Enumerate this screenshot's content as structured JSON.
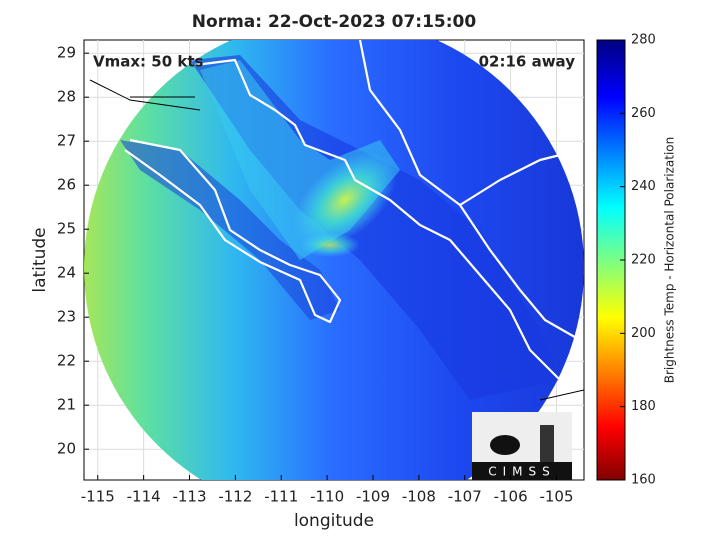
{
  "chart_data": {
    "type": "map",
    "title": "Norma: 22-Oct-2023 07:15:00",
    "annotations": [
      "Vmax: 50 kts",
      "02:16 away"
    ],
    "xlabel": "longitude",
    "ylabel": "latitude",
    "xlim": [
      -115.3,
      -104.4
    ],
    "ylim": [
      19.3,
      29.3
    ],
    "xticks": [
      -115,
      -114,
      -113,
      -112,
      -111,
      -110,
      -109,
      -108,
      -107,
      -106,
      -105
    ],
    "yticks": [
      20,
      21,
      22,
      23,
      24,
      25,
      26,
      27,
      28,
      29
    ],
    "grid": true,
    "colorbar": {
      "label": "Brightness Temp - Horizontal Polarization",
      "lim": [
        160,
        280
      ],
      "ticks": [
        160,
        180,
        200,
        220,
        240,
        260,
        280
      ],
      "colormap": "jet"
    },
    "logo_text": "CIMSS"
  }
}
